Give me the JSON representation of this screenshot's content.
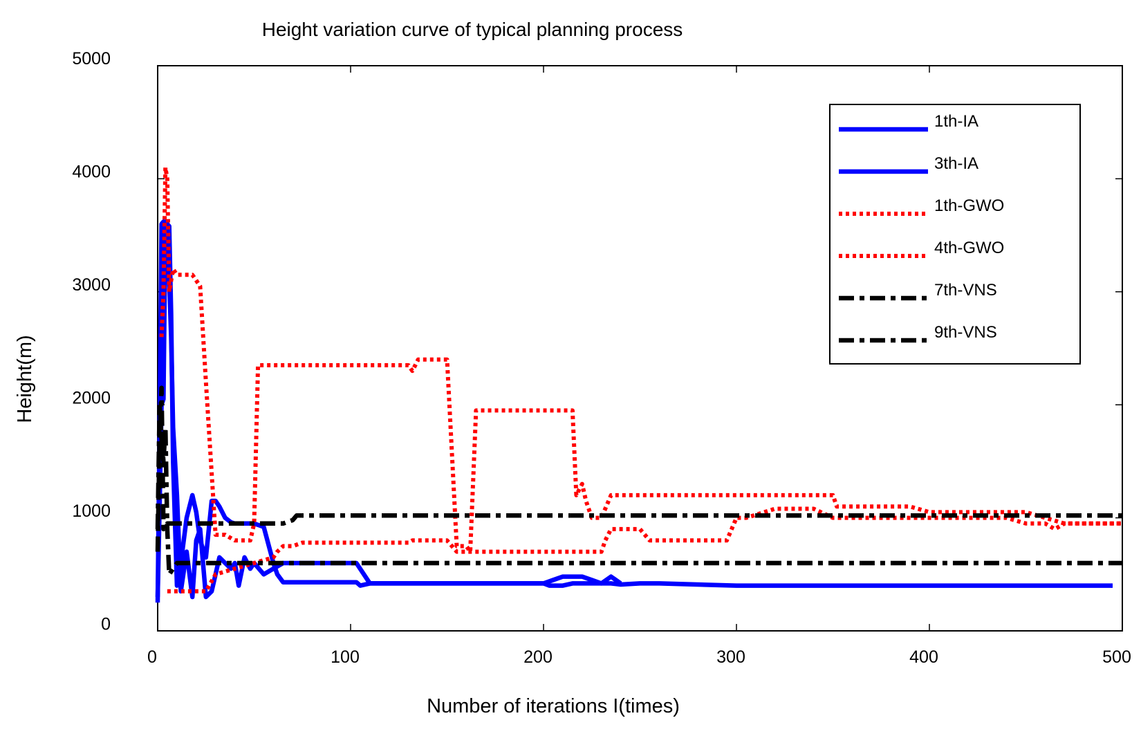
{
  "chart_data": {
    "type": "line",
    "title": "Height variation curve of typical planning process",
    "xlabel": "Number of iterations I(times)",
    "ylabel": "Height(m)",
    "xlim": [
      0,
      500
    ],
    "ylim": [
      0,
      5000
    ],
    "xticks": [
      0,
      100,
      200,
      300,
      400,
      500
    ],
    "yticks": [
      0,
      1000,
      2000,
      3000,
      4000,
      5000
    ],
    "grid": false,
    "legend_position": "top-right",
    "series": [
      {
        "name": "1th-IA",
        "color": "#0000ff",
        "style": "solid",
        "x": [
          0,
          1,
          2,
          3,
          4,
          5,
          6,
          7,
          8,
          10,
          12,
          15,
          18,
          20,
          22,
          25,
          28,
          30,
          32,
          35,
          38,
          40,
          42,
          45,
          48,
          50,
          55,
          60,
          62,
          65,
          70,
          75,
          80,
          85,
          90,
          95,
          100,
          103,
          105,
          110,
          120,
          200,
          203,
          206,
          210,
          215,
          220,
          225,
          230,
          235,
          240,
          250,
          260,
          300,
          495
        ],
        "y": [
          300,
          1100,
          2000,
          2050,
          3620,
          3600,
          3580,
          2800,
          1500,
          400,
          600,
          1000,
          1200,
          1050,
          800,
          650,
          1150,
          1150,
          1100,
          1000,
          960,
          950,
          950,
          950,
          950,
          950,
          920,
          600,
          500,
          430,
          430,
          430,
          430,
          430,
          430,
          430,
          430,
          430,
          400,
          420,
          420,
          420,
          400,
          400,
          400,
          420,
          420,
          420,
          420,
          420,
          410,
          420,
          420,
          400,
          400
        ]
      },
      {
        "name": "3th-IA",
        "color": "#0000ff",
        "style": "solid",
        "x": [
          0,
          1,
          2,
          3,
          5,
          7,
          8,
          10,
          12,
          15,
          18,
          20,
          22,
          25,
          28,
          30,
          32,
          35,
          38,
          40,
          42,
          45,
          48,
          50,
          55,
          60,
          65,
          70,
          80,
          90,
          100,
          103,
          110,
          200,
          205,
          210,
          215,
          220,
          225,
          230,
          235,
          240
        ],
        "y": [
          250,
          1800,
          3600,
          3620,
          3600,
          2600,
          1800,
          1200,
          350,
          700,
          300,
          800,
          900,
          300,
          350,
          500,
          650,
          600,
          550,
          600,
          400,
          650,
          550,
          600,
          500,
          550,
          600,
          600,
          600,
          600,
          600,
          600,
          420,
          420,
          450,
          480,
          480,
          480,
          450,
          420,
          480,
          420
        ]
      },
      {
        "name": "1th-GWO",
        "color": "#ff0000",
        "style": "dotted",
        "x": [
          2,
          3,
          4,
          5,
          6,
          8,
          10,
          12,
          15,
          18,
          20,
          22,
          25,
          30,
          35,
          40,
          45,
          48,
          50,
          52,
          55,
          60,
          65,
          70,
          75,
          80,
          100,
          120,
          130,
          132,
          135,
          140,
          145,
          150,
          155,
          160,
          162,
          165,
          170,
          180,
          190,
          200,
          210,
          215,
          217,
          220,
          222,
          225,
          230,
          235,
          300,
          330,
          350,
          352,
          360,
          380,
          390,
          400,
          450,
          470,
          500
        ],
        "y": [
          2600,
          3000,
          4100,
          4000,
          3000,
          3200,
          3150,
          3150,
          3150,
          3150,
          3100,
          3050,
          2200,
          850,
          850,
          800,
          800,
          800,
          950,
          2350,
          2350,
          2350,
          2350,
          2350,
          2350,
          2350,
          2350,
          2350,
          2350,
          2300,
          2400,
          2400,
          2400,
          2400,
          750,
          750,
          700,
          1950,
          1950,
          1950,
          1950,
          1950,
          1950,
          1950,
          1200,
          1300,
          1150,
          1000,
          1000,
          1200,
          1200,
          1200,
          1200,
          1100,
          1100,
          1100,
          1100,
          1050,
          1050,
          950,
          950
        ]
      },
      {
        "name": "4th-GWO",
        "color": "#ff0000",
        "style": "dotted",
        "x": [
          5,
          8,
          10,
          12,
          15,
          18,
          20,
          25,
          30,
          40,
          50,
          60,
          62,
          65,
          70,
          75,
          80,
          100,
          130,
          132,
          150,
          155,
          160,
          165,
          200,
          230,
          232,
          235,
          240,
          250,
          255,
          260,
          280,
          290,
          295,
          300,
          305,
          320,
          340,
          350,
          400,
          440,
          450,
          460,
          465,
          470,
          500
        ],
        "y": [
          350,
          350,
          350,
          350,
          350,
          350,
          350,
          350,
          500,
          550,
          600,
          650,
          700,
          750,
          750,
          780,
          780,
          780,
          780,
          800,
          800,
          700,
          700,
          700,
          700,
          700,
          800,
          900,
          900,
          900,
          800,
          800,
          800,
          800,
          800,
          1000,
          1000,
          1080,
          1080,
          1000,
          1000,
          1000,
          950,
          950,
          900,
          950,
          950
        ]
      },
      {
        "name": "7th-VNS",
        "color": "#000000",
        "style": "dashdot",
        "x": [
          0,
          1,
          2,
          3,
          5,
          8,
          10,
          15,
          20,
          30,
          40,
          50,
          60,
          65,
          70,
          72,
          80,
          100,
          200,
          300,
          400,
          500
        ],
        "y": [
          700,
          1700,
          2150,
          900,
          950,
          950,
          950,
          950,
          950,
          950,
          950,
          950,
          950,
          950,
          980,
          1020,
          1020,
          1020,
          1020,
          1020,
          1020,
          1020
        ]
      },
      {
        "name": "9th-VNS",
        "color": "#000000",
        "style": "dashdot",
        "x": [
          0,
          1,
          2,
          3,
          4,
          5,
          6,
          8,
          10,
          20,
          50,
          100,
          200,
          300,
          400,
          500
        ],
        "y": [
          900,
          2000,
          1700,
          1500,
          1800,
          900,
          500,
          550,
          600,
          600,
          600,
          600,
          600,
          600,
          600,
          600
        ]
      }
    ]
  }
}
